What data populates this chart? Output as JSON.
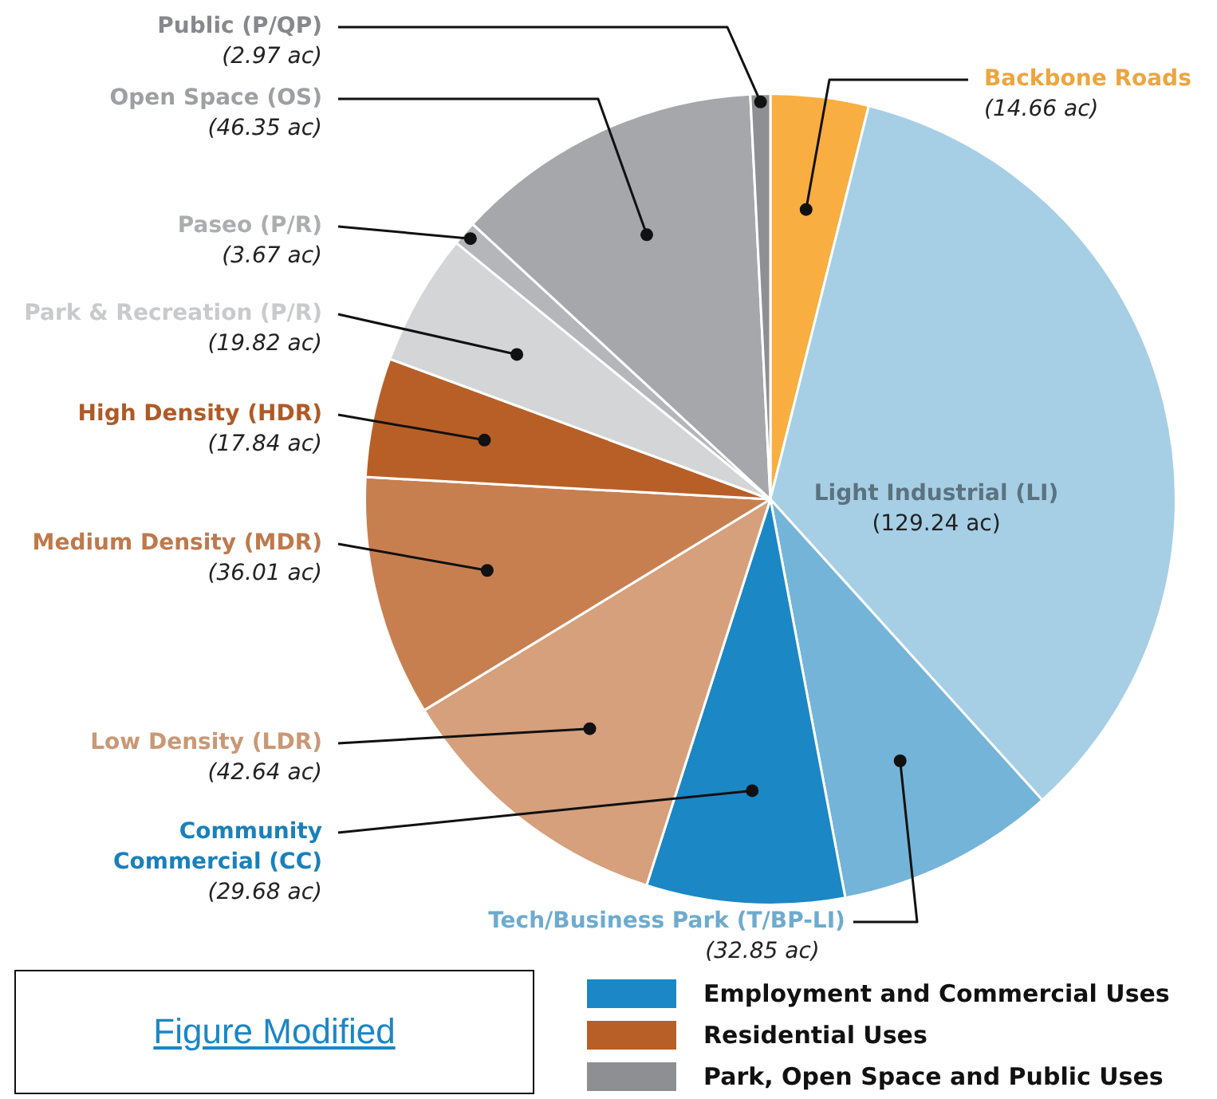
{
  "chart_data": {
    "type": "pie",
    "categories": [
      "Backbone Roads",
      "Light Industrial (LI)",
      "Tech/Business Park (T/BP-LI)",
      "Community Commercial (CC)",
      "Low Density (LDR)",
      "Medium Density (MDR)",
      "High Density (HDR)",
      "Park & Recreation (P/R)",
      "Paseo (P/R)",
      "Open Space (OS)",
      "Public (P/QP)"
    ],
    "values": [
      14.66,
      129.24,
      32.85,
      29.68,
      42.64,
      36.01,
      17.84,
      19.82,
      3.67,
      46.35,
      2.97
    ],
    "value_labels": [
      "(14.66 ac)",
      "(129.24 ac)",
      "(32.85 ac)",
      "(29.68 ac)",
      "(42.64 ac)",
      "(36.01 ac)",
      "(17.84 ac)",
      "(19.82 ac)",
      "(3.67 ac)",
      "(46.35 ac)",
      "(2.97 ac)"
    ],
    "colors": [
      "#f9ae41",
      "#a6cfe6",
      "#74b4d9",
      "#1b87c5",
      "#d5a07b",
      "#c87f50",
      "#b85f28",
      "#d4d5d7",
      "#b5b6b9",
      "#a6a7aa",
      "#8e8f92"
    ],
    "annotations": [
      "Figure Modified",
      "Employment and Commercial Uses",
      "Residential Uses",
      "Park, Open Space and Public Uses"
    ]
  }
}
